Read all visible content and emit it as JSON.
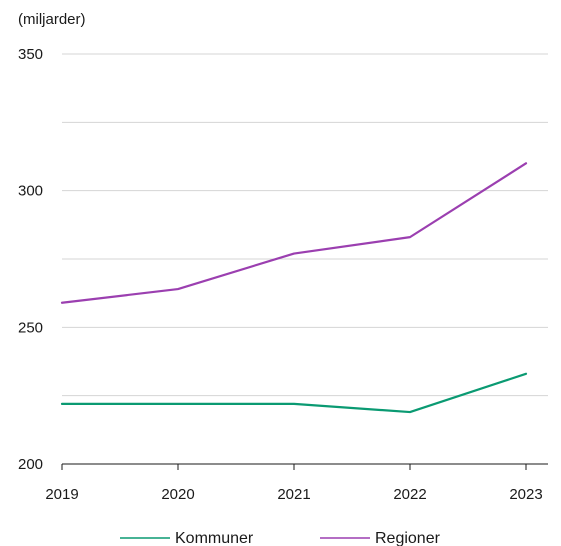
{
  "chart_data": {
    "type": "line",
    "unit_label": "(miljarder)",
    "x": [
      "2019",
      "2020",
      "2021",
      "2022",
      "2023"
    ],
    "ylim": [
      200,
      350
    ],
    "yticks": [
      "200",
      "250",
      "300",
      "350"
    ],
    "grid": true,
    "legend_position": "bottom",
    "series": [
      {
        "name": "Kommuner",
        "color": "#0a9a72",
        "values": [
          222,
          222,
          222,
          219,
          233
        ]
      },
      {
        "name": "Regioner",
        "color": "#9b3fb0",
        "values": [
          259,
          264,
          277,
          283,
          310
        ]
      }
    ]
  }
}
